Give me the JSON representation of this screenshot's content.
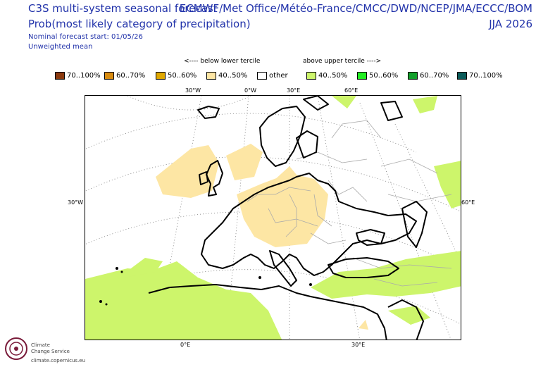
{
  "header": {
    "title": "C3S multi-system seasonal forecast",
    "subtitle": "Prob(most likely category of precipitation)",
    "forecast_start": "Nominal forecast start: 01/05/26",
    "mean_type": "Unweighted mean",
    "centres": "ECMWF/Met Office/Météo-France/CMCC/DWD/NCEP/JMA/ECCC/BOM",
    "season": "JJA 2026"
  },
  "tercile": {
    "below": "<---- below lower tercile",
    "above": "above upper tercile ---->"
  },
  "legend": [
    {
      "label": "70..100%",
      "color": "#8b3a0f"
    },
    {
      "label": "60..70%",
      "color": "#d98c10"
    },
    {
      "label": "50..60%",
      "color": "#e0a800"
    },
    {
      "label": "40..50%",
      "color": "#fde6a4"
    },
    {
      "label": "other",
      "color": "#ffffff"
    },
    {
      "label": "40..50%",
      "color": "#cdf56b"
    },
    {
      "label": "50..60%",
      "color": "#22ee22"
    },
    {
      "label": "60..70%",
      "color": "#12a02b"
    },
    {
      "label": "70..100%",
      "color": "#0a5b5a"
    }
  ],
  "coords": {
    "top_30w": "30°W",
    "top_0e": "0°W",
    "top_30e": "30°E",
    "top_60e": "60°E",
    "left_30w": "30°W",
    "right_60e": "60°E",
    "bottom_0e": "0°E",
    "bottom_30e": "30°E"
  },
  "logo": {
    "line1": "Climate",
    "line2": "Change Service",
    "url": "climate.copernicus.eu"
  }
}
